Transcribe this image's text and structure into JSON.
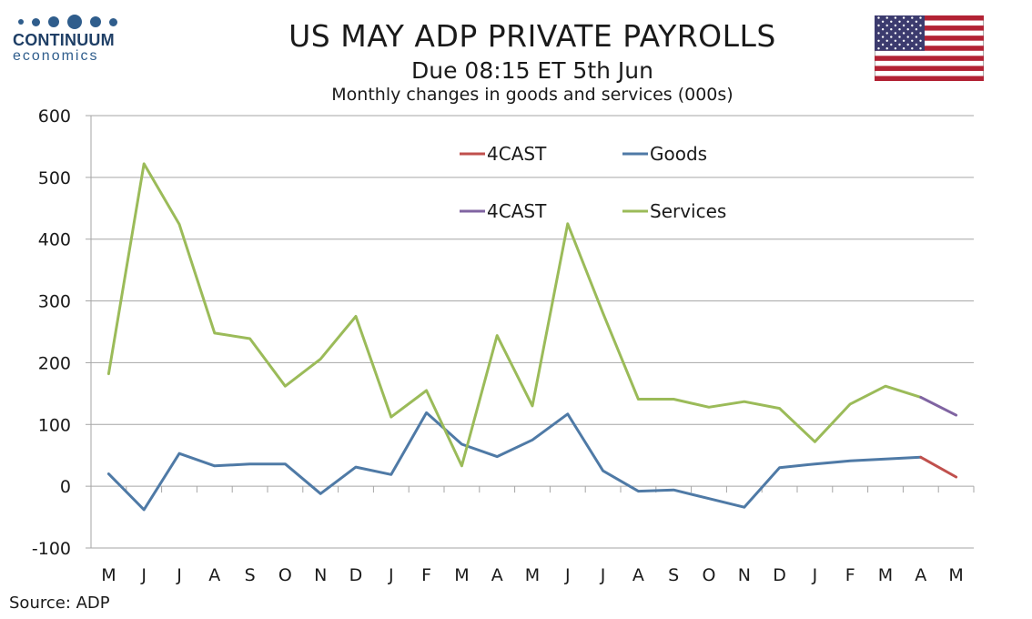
{
  "logo": {
    "name": "CONTINUUM",
    "sub": "economics"
  },
  "title": "US MAY ADP PRIVATE PAYROLLS",
  "subtitle": "Due 08:15 ET 5th Jun",
  "subtitle2": "Monthly changes in goods and services (000s)",
  "source": "Source: ADP",
  "colors": {
    "goods": "#4f7aa6",
    "services": "#9bbb59",
    "forecast_goods": "#c0504d",
    "forecast_services": "#8064a2",
    "grid": "#a6a6a6"
  },
  "chart_data": {
    "type": "line",
    "categories": [
      "M",
      "J",
      "J",
      "A",
      "S",
      "O",
      "N",
      "D",
      "J",
      "F",
      "M",
      "A",
      "M",
      "J",
      "J",
      "A",
      "S",
      "O",
      "N",
      "D",
      "J",
      "F",
      "M",
      "A",
      "M"
    ],
    "ylim": [
      -100,
      600
    ],
    "yticks": [
      -100,
      0,
      100,
      200,
      300,
      400,
      500,
      600
    ],
    "grid": true,
    "legend_position": "top-center",
    "legend": [
      "4CAST",
      "Goods",
      "4CAST",
      "Services"
    ],
    "series": [
      {
        "name": "Goods",
        "values": [
          20,
          -38,
          53,
          33,
          36,
          36,
          -12,
          31,
          19,
          119,
          68,
          48,
          75,
          117,
          25,
          -8,
          -6,
          -20,
          -34,
          30,
          36,
          41,
          44,
          47,
          null
        ]
      },
      {
        "name": "Services",
        "values": [
          182,
          522,
          424,
          248,
          239,
          162,
          206,
          275,
          112,
          155,
          33,
          244,
          130,
          425,
          280,
          141,
          141,
          128,
          137,
          126,
          72,
          133,
          162,
          144,
          null
        ]
      },
      {
        "name": "4CAST",
        "values": [
          null,
          null,
          null,
          null,
          null,
          null,
          null,
          null,
          null,
          null,
          null,
          null,
          null,
          null,
          null,
          null,
          null,
          null,
          null,
          null,
          null,
          null,
          null,
          47,
          15
        ]
      },
      {
        "name": "4CAST",
        "values": [
          null,
          null,
          null,
          null,
          null,
          null,
          null,
          null,
          null,
          null,
          null,
          null,
          null,
          null,
          null,
          null,
          null,
          null,
          null,
          null,
          null,
          null,
          null,
          144,
          115
        ]
      }
    ]
  }
}
